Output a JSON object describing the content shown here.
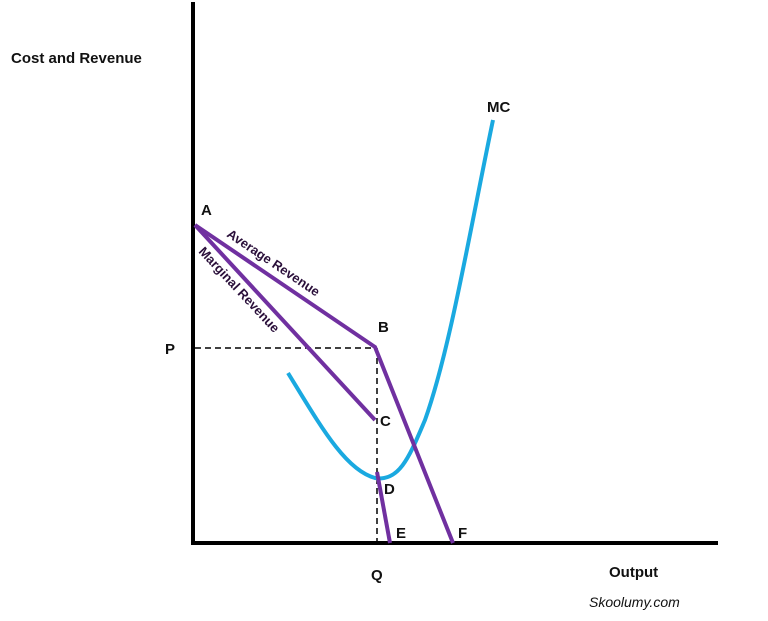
{
  "axes": {
    "y_title": "Cost and Revenue",
    "x_title": "Output"
  },
  "curves": {
    "average_revenue": "Average Revenue",
    "marginal_revenue": "Marginal Revenue",
    "marginal_cost": "MC"
  },
  "points": [
    "A",
    "B",
    "C",
    "D",
    "E",
    "F"
  ],
  "price": "P",
  "quantity": "Q",
  "watermark": "Skoolumy.com"
}
